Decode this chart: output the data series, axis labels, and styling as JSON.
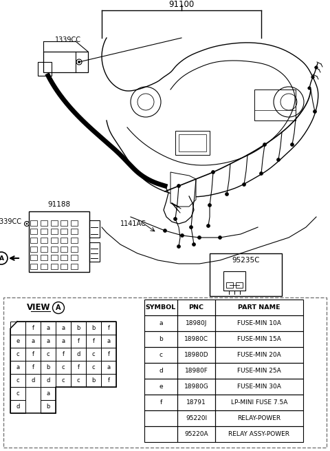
{
  "bg_color": "#ffffff",
  "label_91100": "91100",
  "label_1339CC_top": "1339CC",
  "label_91188": "91188",
  "label_1339CC_left": "1339CC",
  "label_1141AC": "1141AC",
  "label_95235C": "95235C",
  "view_label": "VIEW",
  "view_circle_label": "A",
  "fuse_grid": [
    [
      "",
      "f",
      "a",
      "a",
      "b",
      "b",
      "f"
    ],
    [
      "e",
      "a",
      "a",
      "a",
      "f",
      "f",
      "a"
    ],
    [
      "c",
      "f",
      "c",
      "f",
      "d",
      "c",
      "f"
    ],
    [
      "a",
      "f",
      "b",
      "c",
      "f",
      "c",
      "a"
    ],
    [
      "c",
      "d",
      "d",
      "c",
      "c",
      "b",
      "f"
    ],
    [
      "c",
      "",
      "a",
      "",
      "",
      "",
      ""
    ],
    [
      "d",
      "",
      "b",
      "",
      "",
      "",
      ""
    ]
  ],
  "table_headers": [
    "SYMBOL",
    "PNC",
    "PART NAME"
  ],
  "table_rows": [
    [
      "a",
      "18980J",
      "FUSE-MIN 10A"
    ],
    [
      "b",
      "18980C",
      "FUSE-MIN 15A"
    ],
    [
      "c",
      "18980D",
      "FUSE-MIN 20A"
    ],
    [
      "d",
      "18980F",
      "FUSE-MIN 25A"
    ],
    [
      "e",
      "18980G",
      "FUSE-MIN 30A"
    ],
    [
      "f",
      "18791",
      "LP-MINI FUSE 7.5A"
    ],
    [
      "",
      "95220I",
      "RELAY-POWER"
    ],
    [
      "",
      "95220A",
      "RELAY ASSY-POWER"
    ]
  ]
}
